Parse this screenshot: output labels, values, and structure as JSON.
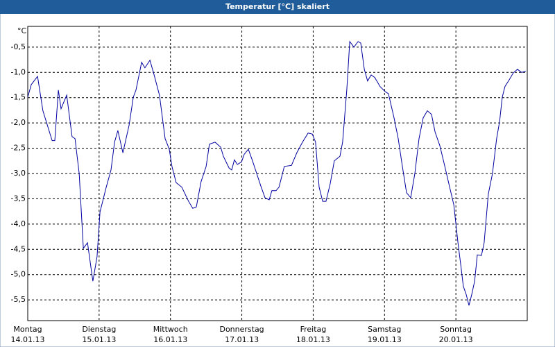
{
  "chart_data": {
    "type": "line",
    "title": "Temperatur [°C] skaliert",
    "y_label": "°C",
    "xlim": [
      0,
      168
    ],
    "ylim": [
      -5.91,
      -0.09
    ],
    "grid": true,
    "xticks": [
      {
        "value": 0,
        "label": "Montag"
      },
      {
        "value": 24,
        "label": "Dienstag"
      },
      {
        "value": 48,
        "label": "Mittwoch"
      },
      {
        "value": 72,
        "label": "Donnerstag"
      },
      {
        "value": 96,
        "label": "Freitag"
      },
      {
        "value": 120,
        "label": "Samstag"
      },
      {
        "value": 144,
        "label": "Sonntag"
      }
    ],
    "xtick_dates": [
      "14.01.13",
      "15.01.13",
      "16.01.13",
      "17.01.13",
      "18.01.13",
      "19.01.13",
      "20.01.13"
    ],
    "yticks": [
      {
        "value": -0.5,
        "label": "-0,5"
      },
      {
        "value": -1,
        "label": "-1,0"
      },
      {
        "value": -1.5,
        "label": "-1,5"
      },
      {
        "value": -2,
        "label": "-2,0"
      },
      {
        "value": -2.5,
        "label": "-2,5"
      },
      {
        "value": -3,
        "label": "-3,0"
      },
      {
        "value": -3.5,
        "label": "-3,5"
      },
      {
        "value": -4,
        "label": "-4,0"
      },
      {
        "value": -4.5,
        "label": "-4,5"
      },
      {
        "value": -5,
        "label": "-5,0"
      },
      {
        "value": -5.5,
        "label": "-5,5"
      }
    ],
    "series": [
      {
        "color": "#0000a0",
        "x": [
          0,
          1.2,
          3.3,
          5.1,
          8.2,
          9.1,
          10.3,
          11.2,
          13.1,
          14.9,
          15.9,
          17.3,
          18.7,
          20.1,
          21.9,
          23.3,
          24.3,
          25.2,
          26.4,
          28.0,
          29.2,
          30.3,
          32.0,
          34.1,
          35.5,
          36.4,
          38.3,
          39.4,
          41.1,
          42.5,
          44.3,
          46.2,
          47.6,
          48.5,
          49.9,
          51.8,
          54.1,
          55.5,
          56.7,
          58.3,
          60.0,
          61.1,
          63.0,
          64.9,
          65.8,
          67.7,
          68.6,
          69.5,
          70.5,
          71.9,
          72.8,
          74.2,
          75.6,
          77.0,
          78.4,
          79.8,
          81.2,
          82.1,
          83.5,
          84.5,
          86.3,
          88.7,
          90.5,
          92.4,
          94.3,
          95.7,
          96.8,
          98.0,
          99.2,
          100.3,
          101.7,
          103.1,
          105.0,
          105.9,
          107.3,
          108.3,
          109.7,
          111.1,
          112.0,
          113.2,
          114.3,
          115.5,
          116.7,
          118.5,
          120.2,
          121.3,
          123.2,
          124.6,
          126.0,
          127.4,
          128.8,
          130.2,
          131.6,
          133.0,
          134.4,
          135.8,
          137.0,
          138.6,
          140.0,
          141.9,
          143.3,
          144.7,
          145.6,
          146.5,
          147.5,
          148.4,
          149.3,
          150.3,
          151.2,
          152.6,
          153.5,
          154.9,
          156.3,
          157.7,
          158.7,
          159.6,
          160.5,
          161.9,
          163.3,
          164.7,
          166.1,
          167.5
        ],
        "values": [
          -1.49,
          -1.24,
          -1.08,
          -1.76,
          -2.35,
          -2.35,
          -1.35,
          -1.72,
          -1.45,
          -2.27,
          -2.31,
          -3.0,
          -4.48,
          -4.37,
          -5.13,
          -4.65,
          -3.76,
          -3.55,
          -3.27,
          -2.93,
          -2.38,
          -2.15,
          -2.59,
          -2.04,
          -1.49,
          -1.35,
          -0.8,
          -0.91,
          -0.76,
          -1.05,
          -1.45,
          -2.31,
          -2.52,
          -2.86,
          -3.18,
          -3.27,
          -3.55,
          -3.69,
          -3.66,
          -3.16,
          -2.86,
          -2.42,
          -2.38,
          -2.48,
          -2.66,
          -2.89,
          -2.93,
          -2.73,
          -2.82,
          -2.77,
          -2.62,
          -2.52,
          -2.75,
          -3.0,
          -3.25,
          -3.48,
          -3.52,
          -3.34,
          -3.34,
          -3.27,
          -2.86,
          -2.84,
          -2.59,
          -2.38,
          -2.2,
          -2.22,
          -2.38,
          -3.27,
          -3.55,
          -3.55,
          -3.21,
          -2.75,
          -2.66,
          -2.38,
          -1.35,
          -0.39,
          -0.5,
          -0.39,
          -0.42,
          -0.94,
          -1.17,
          -1.05,
          -1.1,
          -1.28,
          -1.38,
          -1.42,
          -1.9,
          -2.31,
          -2.86,
          -3.38,
          -3.48,
          -3.0,
          -2.31,
          -1.9,
          -1.76,
          -1.83,
          -2.18,
          -2.45,
          -2.79,
          -3.27,
          -3.62,
          -4.37,
          -4.79,
          -5.23,
          -5.4,
          -5.61,
          -5.4,
          -5.13,
          -4.61,
          -4.62,
          -4.37,
          -3.41,
          -3.0,
          -2.31,
          -1.97,
          -1.49,
          -1.28,
          -1.15,
          -1.01,
          -0.94,
          -1.0,
          -0.98
        ]
      }
    ]
  }
}
